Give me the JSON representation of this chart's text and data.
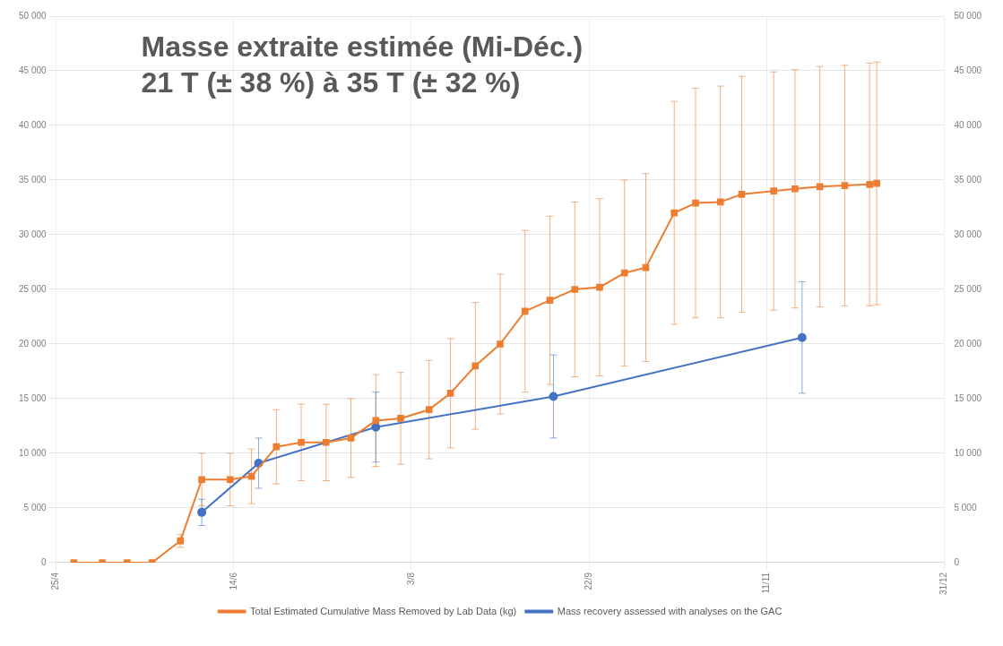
{
  "chart_data": {
    "type": "line",
    "title": "Masse extraite estimée (Mi-Déc.)",
    "subtitle": "21 T (± 38 %) à 35 T (± 32 %)",
    "xlim": [
      "--04-25",
      "--12-31"
    ],
    "xticks": [
      {
        "value": "--04-25",
        "label": "25/4"
      },
      {
        "value": "--06-14",
        "label": "14/6"
      },
      {
        "value": "--08-03",
        "label": "3/8"
      },
      {
        "value": "--09-22",
        "label": "22/9"
      },
      {
        "value": "--11-11",
        "label": "11/11"
      },
      {
        "value": "--12-31",
        "label": "31/12"
      }
    ],
    "ylim": [
      0,
      50000
    ],
    "yticks": [
      0,
      {
        "value": 5000,
        "label": "5 000"
      },
      {
        "value": 10000,
        "label": "10 000"
      },
      {
        "value": 15000,
        "label": "15 000"
      },
      {
        "value": 20000,
        "label": "20 000"
      },
      {
        "value": 25000,
        "label": "25 000"
      },
      {
        "value": 30000,
        "label": "30 000"
      },
      {
        "value": 35000,
        "label": "35 000"
      },
      {
        "value": 40000,
        "label": "40 000"
      },
      {
        "value": 45000,
        "label": "45 000"
      },
      {
        "value": 50000,
        "label": "50 000"
      }
    ],
    "y2lim": [
      0,
      50000
    ],
    "y2ticks": [
      0,
      {
        "value": 5000,
        "label": "5 000"
      },
      {
        "value": 10000,
        "label": "10 000"
      },
      {
        "value": 15000,
        "label": "15 000"
      },
      {
        "value": 20000,
        "label": "20 000"
      },
      {
        "value": 25000,
        "label": "25 000"
      },
      {
        "value": 30000,
        "label": "30 000"
      },
      {
        "value": 35000,
        "label": "35 000"
      },
      {
        "value": 40000,
        "label": "40 000"
      },
      {
        "value": 45000,
        "label": "45 000"
      },
      {
        "value": 50000,
        "label": "50 000"
      }
    ],
    "grid": true,
    "legend": "bottom",
    "line_style": "solid",
    "series": [
      {
        "name": "Total Estimated Cumulative Mass Removed by Lab Data (kg)",
        "color": "#ed7d31",
        "marker": "square",
        "x": [
          "--04-30",
          "--05-08",
          "--05-15",
          "--05-22",
          "--05-30",
          "--06-05",
          "--06-13",
          "--06-19",
          "--06-26",
          "--07-03",
          "--07-10",
          "--07-17",
          "--07-24",
          "--07-31",
          "--08-08",
          "--08-14",
          "--08-21",
          "--08-28",
          "--09-04",
          "--09-11",
          "--09-18",
          "--09-25",
          "--10-02",
          "--10-08",
          "--10-16",
          "--10-22",
          "--10-29",
          "--11-04",
          "--11-13",
          "--11-19",
          "--11-26",
          "--12-03",
          "--12-10",
          "--12-12"
        ],
        "values": [
          0,
          0,
          0,
          0,
          2000,
          7600,
          7600,
          7900,
          10600,
          11000,
          11000,
          11400,
          13000,
          13200,
          14000,
          15500,
          18000,
          20000,
          23000,
          24000,
          25000,
          25200,
          26500,
          27000,
          32000,
          32900,
          33000,
          33700,
          34000,
          34200,
          34400,
          34500,
          34600,
          34700
        ],
        "errors": [
          null,
          null,
          null,
          null,
          600,
          2400,
          2400,
          2500,
          3400,
          3500,
          3500,
          3600,
          4200,
          4200,
          4500,
          5000,
          5800,
          6400,
          7400,
          7700,
          8000,
          8100,
          8500,
          8600,
          10200,
          10500,
          10600,
          10800,
          10900,
          10900,
          11000,
          11000,
          11100,
          11100
        ]
      },
      {
        "name": "Mass recovery assessed with analyses on the GAC",
        "color": "#4472c4",
        "marker": "circle",
        "x": [
          "--06-05",
          "--06-21",
          "--07-24",
          "--09-12",
          "--11-21"
        ],
        "values": [
          4600,
          9100,
          12400,
          15200,
          20600
        ],
        "errors": [
          1200,
          2300,
          3200,
          3800,
          5100
        ]
      }
    ]
  }
}
